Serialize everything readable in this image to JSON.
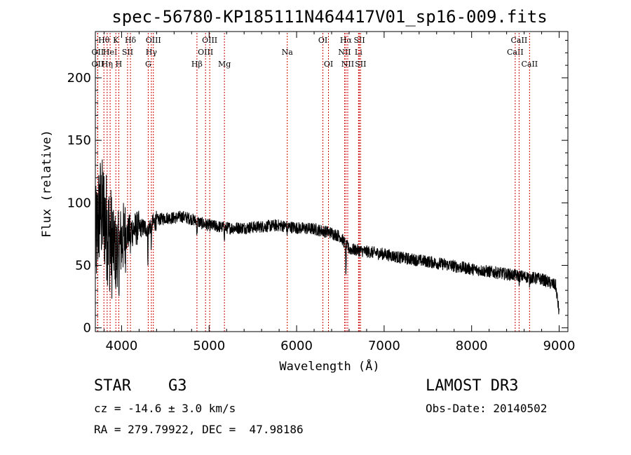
{
  "chart_data": {
    "type": "line",
    "title": "spec-56780-KP185111N464417V01_sp16-009.fits",
    "xlabel": "Wavelength (Å)",
    "ylabel": "Flux (relative)",
    "xlim": [
      3700,
      9100
    ],
    "ylim": [
      -3,
      237
    ],
    "xticks": [
      4000,
      5000,
      6000,
      7000,
      8000,
      9000
    ],
    "yticks": [
      0,
      50,
      100,
      150,
      200
    ],
    "xtick_labels": [
      "4000",
      "5000",
      "6000",
      "7000",
      "8000",
      "9000"
    ],
    "ytick_labels": [
      "0",
      "50",
      "100",
      "150",
      "200"
    ],
    "series": [
      {
        "name": "spectrum",
        "color": "#000000",
        "continuum": [
          [
            3700,
            65
          ],
          [
            3750,
            95
          ],
          [
            3800,
            90
          ],
          [
            3850,
            75
          ],
          [
            3900,
            65
          ],
          [
            3950,
            62
          ],
          [
            4000,
            70
          ],
          [
            4100,
            78
          ],
          [
            4200,
            80
          ],
          [
            4300,
            80
          ],
          [
            4400,
            86
          ],
          [
            4500,
            88
          ],
          [
            4600,
            88
          ],
          [
            4700,
            89
          ],
          [
            4800,
            87
          ],
          [
            4900,
            84
          ],
          [
            5000,
            82
          ],
          [
            5100,
            81
          ],
          [
            5200,
            80
          ],
          [
            5400,
            80
          ],
          [
            5600,
            81
          ],
          [
            5800,
            82
          ],
          [
            5900,
            81
          ],
          [
            6000,
            80
          ],
          [
            6200,
            79
          ],
          [
            6400,
            76
          ],
          [
            6500,
            73
          ],
          [
            6560,
            67
          ],
          [
            6600,
            63
          ],
          [
            6800,
            61
          ],
          [
            7000,
            59
          ],
          [
            7200,
            56
          ],
          [
            7500,
            53
          ],
          [
            8000,
            47
          ],
          [
            8500,
            42
          ],
          [
            8800,
            39
          ],
          [
            8960,
            34
          ],
          [
            9000,
            12
          ]
        ]
      }
    ],
    "absorption_features": [
      {
        "wavelength": 3934,
        "depth": 0.55
      },
      {
        "wavelength": 3968,
        "depth": 0.5
      },
      {
        "wavelength": 4101,
        "depth": 0.2
      },
      {
        "wavelength": 4300,
        "depth": 0.35
      },
      {
        "wavelength": 4340,
        "depth": 0.25
      },
      {
        "wavelength": 4861,
        "depth": 0.15
      },
      {
        "wavelength": 5175,
        "depth": 0.1
      },
      {
        "wavelength": 5893,
        "depth": 0.08
      },
      {
        "wavelength": 6563,
        "depth": 0.45
      },
      {
        "wavelength": 8542,
        "depth": 0.12
      },
      {
        "wavelength": 8662,
        "depth": 0.12
      }
    ],
    "line_markers": [
      {
        "wavelength": 3727,
        "label": "OII",
        "row": 2
      },
      {
        "wavelength": 3727,
        "label": "OII",
        "row": 3
      },
      {
        "wavelength": 3798,
        "label": "Hθ",
        "row": 1
      },
      {
        "wavelength": 3835,
        "label": "Hη",
        "row": 3
      },
      {
        "wavelength": 3869,
        "label": "HeI",
        "row": 2
      },
      {
        "wavelength": 3934,
        "label": "K",
        "row": 1
      },
      {
        "wavelength": 3968,
        "label": "H",
        "row": 3
      },
      {
        "wavelength": 4068,
        "label": "SII",
        "row": 2
      },
      {
        "wavelength": 4101,
        "label": "Hδ",
        "row": 1
      },
      {
        "wavelength": 4304,
        "label": "G",
        "row": 3
      },
      {
        "wavelength": 4340,
        "label": "Hγ",
        "row": 2
      },
      {
        "wavelength": 4363,
        "label": "OIII",
        "row": 1
      },
      {
        "wavelength": 4861,
        "label": "Hβ",
        "row": 3
      },
      {
        "wavelength": 4959,
        "label": "OIII",
        "row": 2
      },
      {
        "wavelength": 5007,
        "label": "OIII",
        "row": 1
      },
      {
        "wavelength": 5175,
        "label": "Mg",
        "row": 3
      },
      {
        "wavelength": 5893,
        "label": "Na",
        "row": 2
      },
      {
        "wavelength": 6300,
        "label": "OI",
        "row": 1
      },
      {
        "wavelength": 6364,
        "label": "OI",
        "row": 3
      },
      {
        "wavelength": 6548,
        "label": "NII",
        "row": 2
      },
      {
        "wavelength": 6563,
        "label": "Hα",
        "row": 1
      },
      {
        "wavelength": 6584,
        "label": "NII",
        "row": 3
      },
      {
        "wavelength": 6707,
        "label": "Li",
        "row": 2
      },
      {
        "wavelength": 6717,
        "label": "SII",
        "row": 1
      },
      {
        "wavelength": 6731,
        "label": "SII",
        "row": 3
      },
      {
        "wavelength": 8498,
        "label": "CaII",
        "row": 2
      },
      {
        "wavelength": 8542,
        "label": "CaII",
        "row": 1
      },
      {
        "wavelength": 8662,
        "label": "CaII",
        "row": 3
      }
    ],
    "marker_color": "#cc0000"
  },
  "info": {
    "object_class": "STAR",
    "subclass": "G3",
    "survey": "LAMOST DR3",
    "redshift": "cz = -14.6 ± 3.0 km/s",
    "obs_date": "Obs-Date: 20140502",
    "coords": "RA = 279.79922, DEC =  47.98186"
  }
}
